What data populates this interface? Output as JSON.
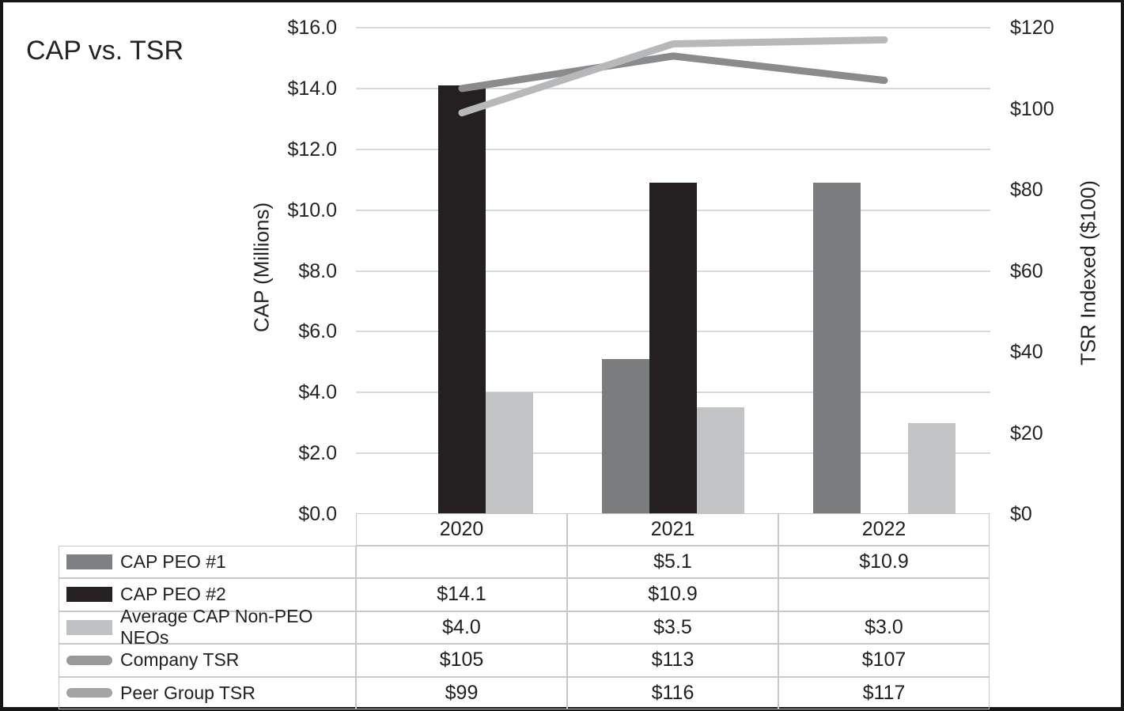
{
  "title": "CAP vs. TSR",
  "colors": {
    "text": "#212121",
    "gridline": "#d8d9da",
    "table_border": "#c7c8c9",
    "frame": "#161616",
    "background": "#ffffff"
  },
  "chart_data": {
    "type": "combo-grouped-bar-and-line-with-data-table",
    "title": "CAP vs. TSR",
    "categories": [
      "2020",
      "2021",
      "2022"
    ],
    "series": [
      {
        "name": "CAP PEO #1",
        "type": "bar",
        "axis": "left",
        "values": [
          null,
          5.1,
          10.9
        ],
        "color": "#7b7c7e",
        "legend_swatch": "#7f8081"
      },
      {
        "name": "CAP PEO #2",
        "type": "bar",
        "axis": "left",
        "values": [
          14.1,
          10.9,
          null
        ],
        "color": "#242021",
        "legend_swatch": "#262223"
      },
      {
        "name": "Average CAP Non-PEO NEOs",
        "type": "bar",
        "axis": "left",
        "values": [
          4.0,
          3.5,
          3.0
        ],
        "color": "#c2c3c5",
        "legend_swatch": "#c0c1c3"
      },
      {
        "name": "Company TSR",
        "type": "line",
        "axis": "right",
        "values": [
          105,
          113,
          107
        ],
        "color": "#8a8b8d",
        "legend_swatch": "#98999a"
      },
      {
        "name": "Peer Group TSR",
        "type": "line",
        "axis": "right",
        "values": [
          99,
          116,
          117
        ],
        "color": "#b7b8ba",
        "legend_swatch": "#a3a4a5"
      }
    ],
    "left_axis": {
      "title": "CAP (Millions)",
      "range": [
        0,
        16
      ],
      "ticks": [
        {
          "label": "$16.0",
          "value": 16
        },
        {
          "label": "$14.0",
          "value": 14
        },
        {
          "label": "$12.0",
          "value": 12
        },
        {
          "label": "$10.0",
          "value": 10
        },
        {
          "label": "$8.0",
          "value": 8
        },
        {
          "label": "$6.0",
          "value": 6
        },
        {
          "label": "$4.0",
          "value": 4
        },
        {
          "label": "$2.0",
          "value": 2
        },
        {
          "label": "$0.0",
          "value": 0
        }
      ]
    },
    "right_axis": {
      "title": "TSR Indexed ($100)",
      "range": [
        0,
        120
      ],
      "ticks": [
        {
          "label": "$120",
          "value": 120
        },
        {
          "label": "$100",
          "value": 100
        },
        {
          "label": "$80",
          "value": 80
        },
        {
          "label": "$60",
          "value": 60
        },
        {
          "label": "$40",
          "value": 40
        },
        {
          "label": "$20",
          "value": 20
        },
        {
          "label": "$0",
          "value": 0
        }
      ]
    },
    "gridlines": true,
    "legend_position": "table-left-column",
    "table": {
      "column_headers": [
        "2020",
        "2021",
        "2022"
      ],
      "rows": [
        {
          "label": "CAP PEO #1",
          "values": [
            "",
            "$5.1",
            "$10.9"
          ]
        },
        {
          "label": "CAP PEO #2",
          "values": [
            "$14.1",
            "$10.9",
            ""
          ]
        },
        {
          "label": "Average CAP Non-PEO NEOs",
          "values": [
            "$4.0",
            "$3.5",
            "$3.0"
          ]
        },
        {
          "label": "Company TSR",
          "values": [
            "$105",
            "$113",
            "$107"
          ]
        },
        {
          "label": "Peer Group TSR",
          "values": [
            "$99",
            "$116",
            "$117"
          ]
        }
      ]
    }
  }
}
